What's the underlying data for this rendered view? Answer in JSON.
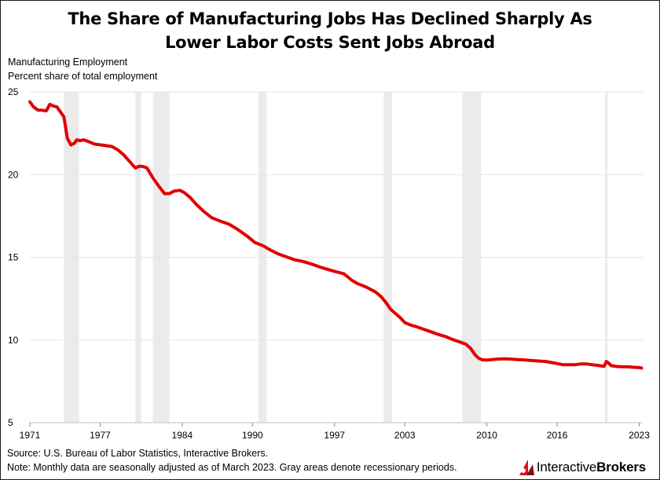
{
  "title_line1": "The Share of Manufacturing Jobs Has Declined Sharply As",
  "title_line2": "Lower Labor Costs Sent Jobs Abroad",
  "subtitle_line1": "Manufacturing Employment",
  "subtitle_line2": "Percent share of total employment",
  "footnote_source": "Source: U.S. Bureau of Labor Statistics, Interactive Brokers.",
  "footnote_note": "Note: Monthly data are seasonally adjusted as of March 2023. Gray areas denote recessionary periods.",
  "logo": {
    "text_regular": "Interactive",
    "text_bold": "Brokers",
    "icon": "interactive-brokers-logo-icon"
  },
  "colors": {
    "line": "#e00000",
    "recession": "#ebebeb",
    "grid": "#e6e6e6"
  },
  "chart_data": {
    "type": "line",
    "title": "The Share of Manufacturing Jobs Has Declined Sharply As Lower Labor Costs Sent Jobs Abroad",
    "ylabel": "Manufacturing Employment — Percent share of total employment",
    "xlabel": "",
    "xlim": [
      1971,
      2023.3
    ],
    "ylim": [
      5,
      25
    ],
    "yticks": [
      5,
      10,
      15,
      20,
      25
    ],
    "xticks": [
      1971,
      1977,
      1984,
      1990,
      1997,
      2003,
      2010,
      2016,
      2023
    ],
    "grid": true,
    "recessions": [
      [
        1973.9,
        1975.2
      ],
      [
        1980.0,
        1980.5
      ],
      [
        1981.5,
        1982.9
      ],
      [
        1990.5,
        1991.2
      ],
      [
        2001.2,
        2001.9
      ],
      [
        2007.9,
        2009.5
      ],
      [
        2020.1,
        2020.3
      ]
    ],
    "series": [
      {
        "x": [
          1971.0,
          1971.3,
          1971.7,
          1972.0,
          1972.4,
          1972.7,
          1973.0,
          1973.3,
          1973.6,
          1973.9,
          1974.2,
          1974.5,
          1974.8,
          1975.0,
          1975.3,
          1975.6,
          1976.0,
          1976.5,
          1977.0,
          1977.5,
          1978.0,
          1978.5,
          1979.0,
          1979.5,
          1980.0,
          1980.3,
          1980.6,
          1981.0,
          1981.5,
          1982.0,
          1982.5,
          1982.9,
          1983.3,
          1983.8,
          1984.2,
          1984.7,
          1985.2,
          1985.8,
          1986.5,
          1987.2,
          1988.0,
          1988.7,
          1989.5,
          1990.2,
          1990.9,
          1991.5,
          1992.2,
          1993.0,
          1993.6,
          1994.3,
          1995.0,
          1995.8,
          1996.5,
          1997.0,
          1997.8,
          1998.5,
          1999.0,
          1999.7,
          2000.5,
          2001.0,
          2001.4,
          2001.8,
          2002.2,
          2002.6,
          2003.0,
          2003.5,
          2004.0,
          2004.6,
          2005.2,
          2005.8,
          2006.5,
          2007.0,
          2007.6,
          2008.2,
          2008.6,
          2009.0,
          2009.3,
          2009.6,
          2010.0,
          2010.5,
          2011.0,
          2011.5,
          2012.0,
          2012.5,
          2013.0,
          2014.0,
          2015.0,
          2015.8,
          2016.5,
          2017.0,
          2017.5,
          2018.0,
          2018.5,
          2019.0,
          2019.6,
          2020.0,
          2020.2,
          2020.4,
          2020.6,
          2021.0,
          2021.5,
          2022.0,
          2022.5,
          2023.0,
          2023.2
        ],
        "values": [
          24.4,
          24.1,
          23.9,
          23.9,
          23.85,
          24.25,
          24.15,
          24.1,
          23.8,
          23.5,
          22.2,
          21.8,
          21.9,
          22.1,
          22.05,
          22.1,
          22.0,
          21.85,
          21.8,
          21.75,
          21.7,
          21.5,
          21.2,
          20.8,
          20.4,
          20.5,
          20.5,
          20.4,
          19.8,
          19.3,
          18.85,
          18.85,
          19.0,
          19.05,
          18.9,
          18.6,
          18.2,
          17.8,
          17.4,
          17.2,
          17.0,
          16.7,
          16.3,
          15.9,
          15.7,
          15.45,
          15.2,
          15.0,
          14.85,
          14.75,
          14.6,
          14.4,
          14.25,
          14.15,
          14.0,
          13.6,
          13.4,
          13.2,
          12.9,
          12.6,
          12.25,
          11.85,
          11.6,
          11.35,
          11.05,
          10.9,
          10.8,
          10.65,
          10.5,
          10.35,
          10.2,
          10.05,
          9.9,
          9.75,
          9.5,
          9.1,
          8.9,
          8.8,
          8.78,
          8.82,
          8.85,
          8.86,
          8.85,
          8.82,
          8.8,
          8.75,
          8.7,
          8.6,
          8.5,
          8.5,
          8.5,
          8.55,
          8.55,
          8.5,
          8.45,
          8.4,
          8.7,
          8.6,
          8.45,
          8.4,
          8.38,
          8.38,
          8.35,
          8.33,
          8.3
        ]
      }
    ]
  }
}
